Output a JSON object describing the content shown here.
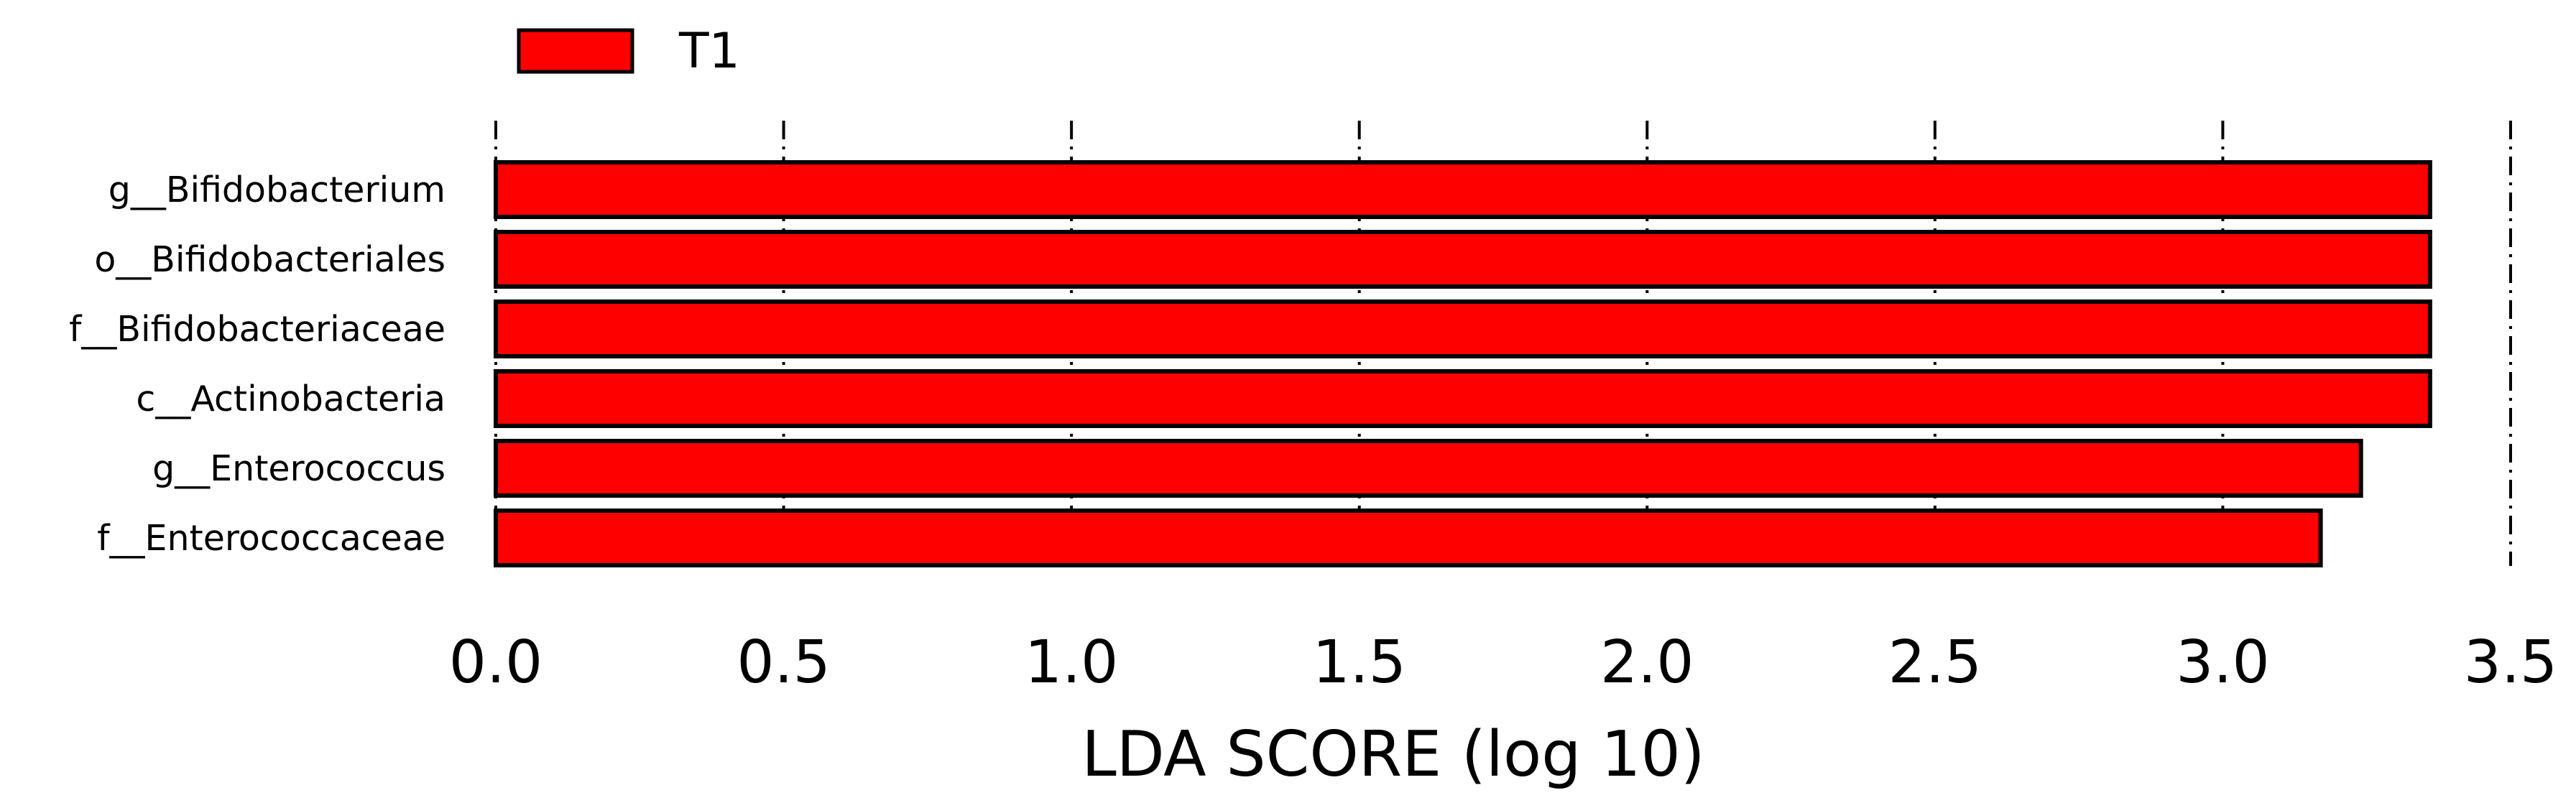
{
  "chart_data": {
    "type": "bar",
    "orientation": "horizontal",
    "categories": [
      "g__Bifidobacterium",
      "o__Bifidobacteriales",
      "f__Bifidobacteriaceae",
      "c__Actinobacteria",
      "g__Enterococcus",
      "f__Enterococcaceae"
    ],
    "series": [
      {
        "name": "T1",
        "color": "#ff0000",
        "values": [
          3.36,
          3.36,
          3.36,
          3.36,
          3.24,
          3.17
        ]
      }
    ],
    "xlabel": "LDA SCORE (log 10)",
    "ylabel": "",
    "xlim": [
      0,
      3.5
    ],
    "xticks": [
      0.0,
      0.5,
      1.0,
      1.5,
      2.0,
      2.5,
      3.0,
      3.5
    ],
    "xtick_labels": [
      "0.0",
      "0.5",
      "1.0",
      "1.5",
      "2.0",
      "2.5",
      "3.0",
      "3.5"
    ],
    "grid": "vertical dashed",
    "legend": {
      "placement": "top-left",
      "entries": [
        "T1"
      ]
    },
    "bar_edge_color": "#000000"
  }
}
